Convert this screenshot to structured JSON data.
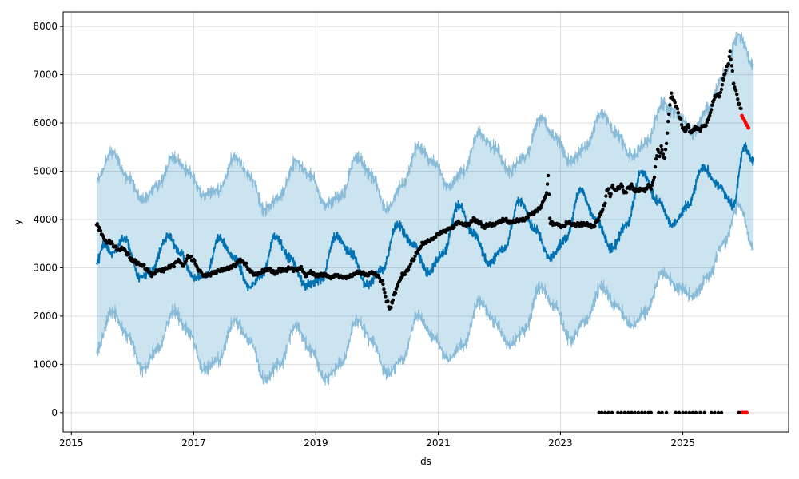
{
  "chart_data": {
    "type": "line",
    "title": "",
    "xlabel": "ds",
    "ylabel": "y",
    "grid": true,
    "legend": "none",
    "x_type": "date",
    "xlim": [
      "2014-11-13",
      "2026-09-25"
    ],
    "ylim": [
      -400,
      8300
    ],
    "x_ticks": [
      "2015-01-01",
      "2017-01-01",
      "2019-01-01",
      "2021-01-01",
      "2023-01-01",
      "2025-01-01"
    ],
    "x_tick_labels": [
      "2015",
      "2017",
      "2019",
      "2021",
      "2023",
      "2025"
    ],
    "y_ticks": [
      0,
      1000,
      2000,
      3000,
      4000,
      5000,
      6000,
      7000,
      8000
    ],
    "y_tick_labels": [
      "0",
      "1000",
      "2000",
      "3000",
      "4000",
      "5000",
      "6000",
      "7000",
      "8000"
    ],
    "colors": {
      "forecast": "#0072B2",
      "interval_fill": "#0072B2",
      "interval_edge": "#88bbd8",
      "observed": "#000000",
      "anomaly": "#ff0000",
      "grid": "#dddddd"
    },
    "series": [
      {
        "role": "forecast",
        "x": [
          "2015-06-01",
          "2015-07-15",
          "2015-09-01",
          "2015-11-15",
          "2016-02-15",
          "2016-04-15",
          "2016-08-01",
          "2016-10-15",
          "2017-01-01",
          "2017-03-15",
          "2017-06-01",
          "2017-09-01",
          "2017-12-01",
          "2018-02-15",
          "2018-05-01",
          "2018-08-01",
          "2018-11-01",
          "2019-02-01",
          "2019-05-01",
          "2019-08-01",
          "2019-11-01",
          "2020-02-01",
          "2020-05-01",
          "2020-08-01",
          "2020-11-01",
          "2021-02-01",
          "2021-05-01",
          "2021-08-01",
          "2021-11-01",
          "2022-02-01",
          "2022-05-01",
          "2022-08-01",
          "2022-11-01",
          "2023-02-01",
          "2023-05-01",
          "2023-08-01",
          "2023-11-01",
          "2024-02-01",
          "2024-05-01",
          "2024-08-01",
          "2024-11-01",
          "2025-02-01",
          "2025-05-01",
          "2025-08-01",
          "2025-11-01",
          "2026-01-01",
          "2026-02-28"
        ],
        "y": [
          3100,
          3500,
          3300,
          3600,
          2800,
          2900,
          3650,
          3300,
          2800,
          2850,
          3600,
          3200,
          2600,
          2850,
          3650,
          3200,
          2650,
          2750,
          3650,
          3300,
          2650,
          2950,
          3900,
          3500,
          2900,
          3300,
          4300,
          3700,
          3100,
          3400,
          4400,
          3800,
          3200,
          3600,
          4600,
          4000,
          3400,
          3900,
          5000,
          4400,
          3900,
          4300,
          5100,
          4700,
          4300,
          5500,
          5200
        ]
      },
      {
        "role": "interval_upper",
        "x": [
          "2015-06-01",
          "2015-09-01",
          "2015-12-01",
          "2016-03-01",
          "2016-06-01",
          "2016-09-01",
          "2016-12-01",
          "2017-03-01",
          "2017-06-01",
          "2017-09-01",
          "2017-12-01",
          "2018-03-01",
          "2018-06-01",
          "2018-09-01",
          "2018-12-01",
          "2019-03-01",
          "2019-06-01",
          "2019-09-01",
          "2019-12-01",
          "2020-03-01",
          "2020-06-01",
          "2020-09-01",
          "2020-12-01",
          "2021-03-01",
          "2021-06-01",
          "2021-09-01",
          "2021-12-01",
          "2022-03-01",
          "2022-06-01",
          "2022-09-01",
          "2022-12-01",
          "2023-03-01",
          "2023-06-01",
          "2023-09-01",
          "2023-12-01",
          "2024-03-01",
          "2024-06-01",
          "2024-09-01",
          "2024-12-01",
          "2025-03-01",
          "2025-06-01",
          "2025-09-01",
          "2025-12-01",
          "2026-02-28"
        ],
        "y": [
          4800,
          5400,
          4900,
          4400,
          4700,
          5300,
          5000,
          4500,
          4600,
          5300,
          4900,
          4200,
          4500,
          5200,
          4900,
          4300,
          4500,
          5300,
          4900,
          4200,
          4700,
          5500,
          5200,
          4700,
          5000,
          5800,
          5500,
          5000,
          5300,
          6100,
          5700,
          5200,
          5500,
          6200,
          5800,
          5300,
          5600,
          6400,
          6200,
          5800,
          6300,
          7000,
          7800,
          7200
        ]
      },
      {
        "role": "interval_lower",
        "x": [
          "2015-06-01",
          "2015-09-01",
          "2015-12-01",
          "2016-03-01",
          "2016-06-01",
          "2016-09-01",
          "2016-12-01",
          "2017-03-01",
          "2017-06-01",
          "2017-09-01",
          "2017-12-01",
          "2018-03-01",
          "2018-06-01",
          "2018-09-01",
          "2018-12-01",
          "2019-03-01",
          "2019-06-01",
          "2019-09-01",
          "2019-12-01",
          "2020-03-01",
          "2020-06-01",
          "2020-09-01",
          "2020-12-01",
          "2021-03-01",
          "2021-06-01",
          "2021-09-01",
          "2021-12-01",
          "2022-03-01",
          "2022-06-01",
          "2022-09-01",
          "2022-12-01",
          "2023-03-01",
          "2023-06-01",
          "2023-09-01",
          "2023-12-01",
          "2024-03-01",
          "2024-06-01",
          "2024-09-01",
          "2024-12-01",
          "2025-03-01",
          "2025-06-01",
          "2025-09-01",
          "2025-12-01",
          "2026-02-28"
        ],
        "y": [
          1300,
          2100,
          1600,
          900,
          1300,
          2100,
          1700,
          900,
          1100,
          1900,
          1500,
          700,
          1000,
          1800,
          1300,
          700,
          1000,
          1900,
          1500,
          800,
          1100,
          2000,
          1600,
          1100,
          1400,
          2300,
          1900,
          1400,
          1700,
          2600,
          2200,
          1500,
          1900,
          2600,
          2200,
          1800,
          2100,
          2900,
          2600,
          2400,
          2800,
          3500,
          4300,
          3400
        ]
      },
      {
        "role": "observed",
        "x": [
          "2015-06-01",
          "2015-06-20",
          "2015-07-10",
          "2015-08-01",
          "2015-08-20",
          "2015-09-15",
          "2015-10-10",
          "2015-11-05",
          "2015-12-01",
          "2016-01-01",
          "2016-02-01",
          "2016-03-01",
          "2016-04-01",
          "2016-05-01",
          "2016-06-01",
          "2016-07-01",
          "2016-08-01",
          "2016-09-01",
          "2016-10-01",
          "2016-11-01",
          "2016-12-01",
          "2017-01-01",
          "2017-02-01",
          "2017-03-01",
          "2017-04-01",
          "2017-05-01",
          "2017-06-01",
          "2017-07-01",
          "2017-08-01",
          "2017-09-01",
          "2017-10-01",
          "2017-11-01",
          "2017-12-01",
          "2018-01-01",
          "2018-02-01",
          "2018-03-01",
          "2018-04-01",
          "2018-05-01",
          "2018-06-01",
          "2018-07-01",
          "2018-08-01",
          "2018-09-01",
          "2018-10-01",
          "2018-11-01",
          "2018-12-01",
          "2019-01-01",
          "2019-02-01",
          "2019-03-01",
          "2019-04-01",
          "2019-05-01",
          "2019-06-01",
          "2019-07-01",
          "2019-08-01",
          "2019-09-01",
          "2019-10-01",
          "2019-11-01",
          "2019-12-01",
          "2020-01-01",
          "2020-02-01",
          "2020-03-01",
          "2020-03-20",
          "2020-04-01",
          "2020-04-20",
          "2020-05-10",
          "2020-06-01",
          "2020-07-01",
          "2020-08-01",
          "2020-09-01",
          "2020-10-01",
          "2020-11-01",
          "2020-12-01",
          "2021-01-01",
          "2021-02-01",
          "2021-03-01",
          "2021-04-01",
          "2021-05-01",
          "2021-06-01",
          "2021-07-01",
          "2021-08-01",
          "2021-09-01",
          "2021-10-01",
          "2021-11-01",
          "2021-12-01",
          "2022-01-01",
          "2022-02-01",
          "2022-03-01",
          "2022-04-01",
          "2022-05-01",
          "2022-06-01",
          "2022-07-01",
          "2022-08-01",
          "2022-09-01",
          "2022-09-25",
          "2022-10-10",
          "2022-10-20",
          "2022-11-01",
          "2022-11-20",
          "2022-12-15",
          "2023-01-15",
          "2023-02-15",
          "2023-03-15",
          "2023-04-15",
          "2023-05-15",
          "2023-06-15",
          "2023-07-15",
          "2023-08-15",
          "2023-09-01",
          "2023-09-20",
          "2023-10-10",
          "2023-10-25",
          "2023-11-10",
          "2023-11-25",
          "2023-12-10",
          "2024-01-01",
          "2024-01-20",
          "2024-02-10",
          "2024-03-01",
          "2024-03-20",
          "2024-04-10",
          "2024-05-01",
          "2024-05-20",
          "2024-06-10",
          "2024-06-25",
          "2024-07-05",
          "2024-07-15",
          "2024-07-25",
          "2024-08-05",
          "2024-08-15",
          "2024-08-25",
          "2024-09-05",
          "2024-09-15",
          "2024-09-25",
          "2024-10-05",
          "2024-10-15",
          "2024-10-25",
          "2024-11-05",
          "2024-11-15",
          "2024-11-25",
          "2024-12-05",
          "2024-12-15",
          "2025-01-01",
          "2025-01-15",
          "2025-02-01",
          "2025-02-15",
          "2025-03-01",
          "2025-03-15",
          "2025-04-01",
          "2025-04-15",
          "2025-05-01",
          "2025-05-15",
          "2025-06-01",
          "2025-06-15",
          "2025-07-01",
          "2025-07-15",
          "2025-08-01",
          "2025-08-10",
          "2025-08-20",
          "2025-08-25",
          "2025-09-01",
          "2025-09-10",
          "2025-09-20",
          "2025-10-01",
          "2025-10-10",
          "2025-10-20",
          "2025-11-01",
          "2025-11-10",
          "2025-11-20",
          "2025-12-01",
          "2025-12-15"
        ],
        "y": [
          3900,
          3800,
          3650,
          3500,
          3550,
          3450,
          3350,
          3400,
          3300,
          3150,
          3100,
          3050,
          2950,
          2850,
          2950,
          2950,
          3000,
          3050,
          3150,
          3050,
          3250,
          3150,
          2950,
          2850,
          2850,
          2900,
          2950,
          2950,
          3000,
          3050,
          3150,
          3100,
          2950,
          2850,
          2900,
          2950,
          2950,
          2900,
          2950,
          2950,
          3000,
          2950,
          3000,
          2850,
          2900,
          2850,
          2850,
          2850,
          2800,
          2850,
          2800,
          2800,
          2850,
          2900,
          2900,
          2850,
          2900,
          2850,
          2700,
          2300,
          2150,
          2300,
          2500,
          2700,
          2850,
          2950,
          3150,
          3350,
          3500,
          3550,
          3600,
          3700,
          3750,
          3800,
          3850,
          3950,
          3900,
          3900,
          4000,
          3950,
          3850,
          3900,
          3900,
          3950,
          4000,
          3950,
          3950,
          4000,
          4000,
          4100,
          4150,
          4250,
          4400,
          4550,
          4900,
          3950,
          3900,
          3900,
          3850,
          3950,
          3900,
          3900,
          3900,
          3900,
          3850,
          4000,
          4150,
          4300,
          4650,
          4500,
          4700,
          4600,
          4650,
          4700,
          4550,
          4650,
          4700,
          4600,
          4600,
          4650,
          4600,
          4700,
          4650,
          4750,
          4900,
          5250,
          5450,
          5300,
          5500,
          5350,
          5250,
          5600,
          6000,
          6400,
          6600,
          6500,
          6400,
          6350,
          6200,
          6100,
          5900,
          5850,
          5950,
          5800,
          5850,
          5900,
          5900,
          5850,
          5950,
          5950,
          6050,
          6200,
          6450,
          6550,
          6600,
          6550,
          6700,
          6800,
          6900,
          7050,
          7150,
          7250,
          7450,
          7200,
          6800,
          6700,
          6600,
          6400,
          6300
        ]
      },
      {
        "role": "observed_zero",
        "x": [
          "2023-08-20",
          "2023-09-05",
          "2023-09-25",
          "2023-10-15",
          "2023-11-05",
          "2023-12-10",
          "2023-12-30",
          "2024-01-20",
          "2024-02-10",
          "2024-03-01",
          "2024-03-20",
          "2024-04-10",
          "2024-05-01",
          "2024-05-20",
          "2024-06-10",
          "2024-06-25",
          "2024-08-10",
          "2024-08-30",
          "2024-09-25",
          "2024-11-20",
          "2024-12-10",
          "2025-01-01",
          "2025-01-20",
          "2025-02-10",
          "2025-03-01",
          "2025-03-20",
          "2025-04-15",
          "2025-05-10",
          "2025-06-20",
          "2025-07-10",
          "2025-08-01",
          "2025-08-20",
          "2025-12-01",
          "2025-12-15"
        ],
        "y": [
          0,
          0,
          0,
          0,
          0,
          0,
          0,
          0,
          0,
          0,
          0,
          0,
          0,
          0,
          0,
          0,
          0,
          0,
          0,
          0,
          0,
          0,
          0,
          0,
          0,
          0,
          0,
          0,
          0,
          0,
          0,
          0,
          0,
          0
        ]
      },
      {
        "role": "anomaly",
        "x": [
          "2025-12-20",
          "2025-12-28",
          "2026-01-05",
          "2026-01-12",
          "2026-01-20",
          "2026-01-28",
          "2025-12-25",
          "2026-01-08",
          "2026-01-18"
        ],
        "y": [
          6150,
          6100,
          6050,
          6000,
          5950,
          5900,
          0,
          0,
          0
        ]
      }
    ]
  }
}
